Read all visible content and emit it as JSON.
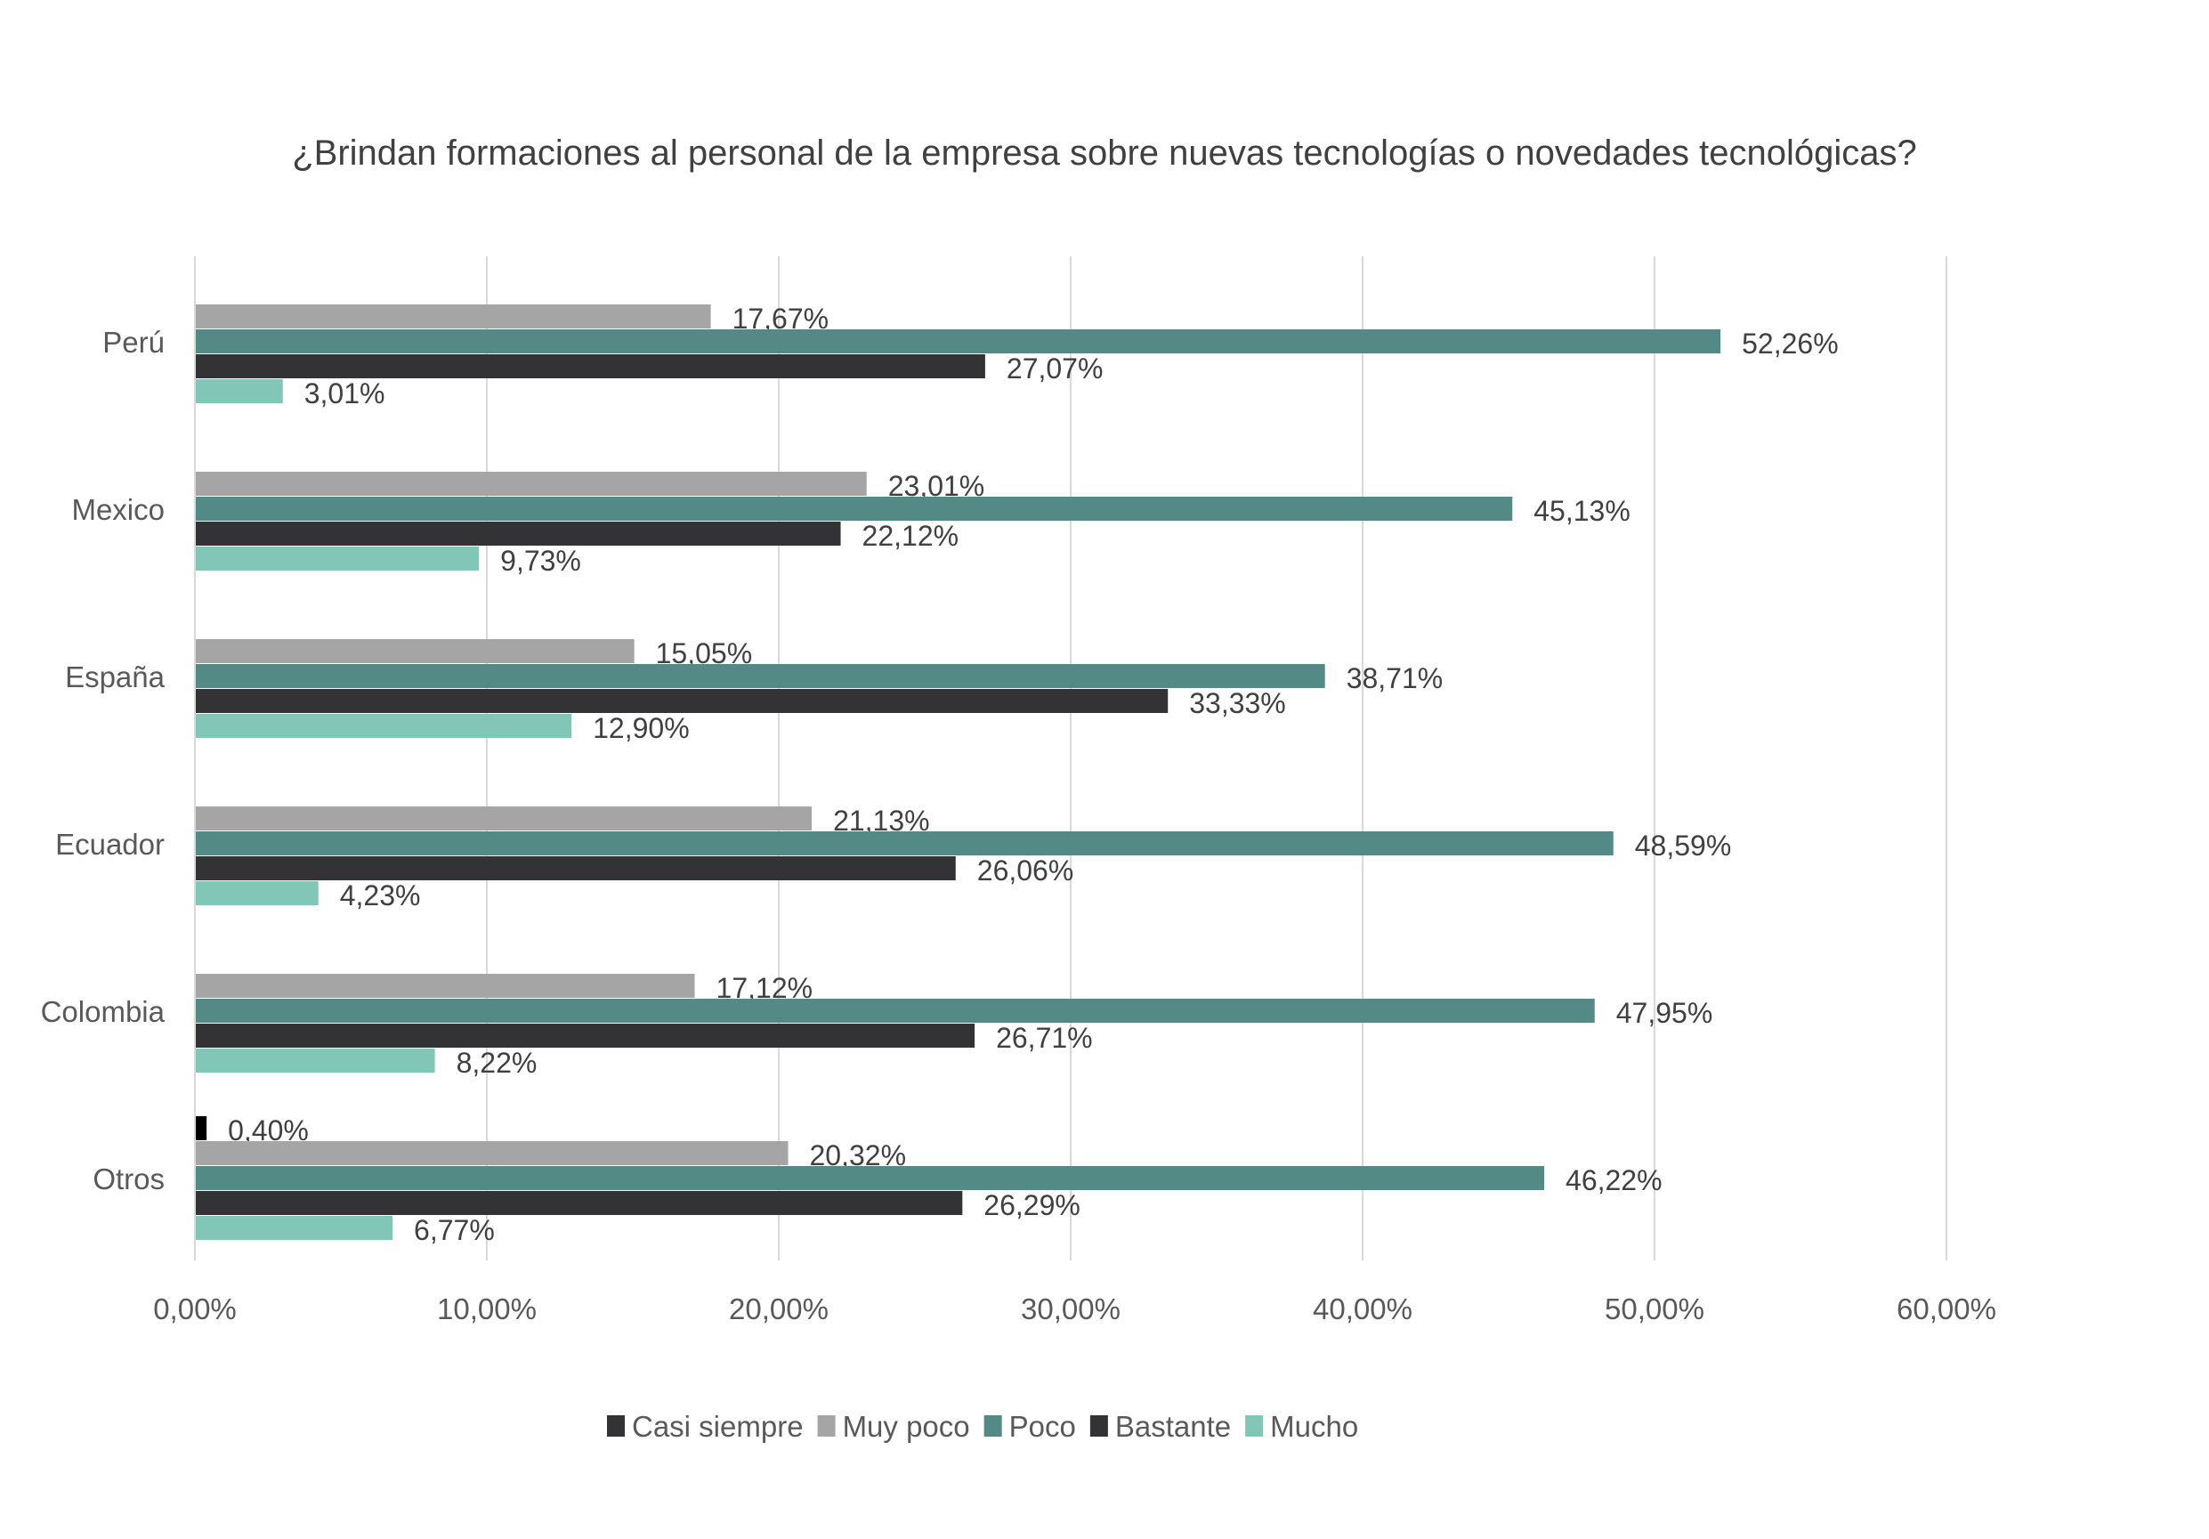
{
  "chart_data": {
    "type": "bar",
    "orientation": "horizontal",
    "title": "¿Brindan formaciones al personal de la empresa sobre nuevas tecnologías o novedades tecnológicas?",
    "categories": [
      "Perú",
      "Mexico",
      "España",
      "Ecuador",
      "Colombia",
      "Otros"
    ],
    "series": [
      {
        "name": "Casi siempre",
        "color": "#000000",
        "legend_color": "#333335",
        "values": [
          null,
          null,
          null,
          null,
          null,
          0.4
        ],
        "labels": [
          "",
          "",
          "",
          "",
          "",
          "0,40%"
        ]
      },
      {
        "name": "Muy poco",
        "color": "#a5a5a5",
        "values": [
          17.67,
          23.01,
          15.05,
          21.13,
          17.12,
          20.32
        ],
        "labels": [
          "17,67%",
          "23,01%",
          "15,05%",
          "21,13%",
          "17,12%",
          "20,32%"
        ]
      },
      {
        "name": "Poco",
        "color": "#538a85",
        "values": [
          52.26,
          45.13,
          38.71,
          48.59,
          47.95,
          46.22
        ],
        "labels": [
          "52,26%",
          "45,13%",
          "38,71%",
          "48,59%",
          "47,95%",
          "46,22%"
        ]
      },
      {
        "name": "Bastante",
        "color": "#333335",
        "values": [
          27.07,
          22.12,
          33.33,
          26.06,
          26.71,
          26.29
        ],
        "labels": [
          "27,07%",
          "22,12%",
          "33,33%",
          "26,06%",
          "26,71%",
          "26,29%"
        ]
      },
      {
        "name": "Mucho",
        "color": "#82c6b8",
        "values": [
          3.01,
          9.73,
          12.9,
          4.23,
          8.22,
          6.77
        ],
        "labels": [
          "3,01%",
          "9,73%",
          "12,90%",
          "4,23%",
          "8,22%",
          "6,77%"
        ]
      }
    ],
    "xlim": [
      0,
      60
    ],
    "xticks": [
      0,
      10,
      20,
      30,
      40,
      50,
      60
    ],
    "xtick_labels": [
      "0,00%",
      "10,00%",
      "20,00%",
      "30,00%",
      "40,00%",
      "50,00%",
      "60,00%"
    ],
    "grid": true,
    "legend_position": "bottom"
  }
}
